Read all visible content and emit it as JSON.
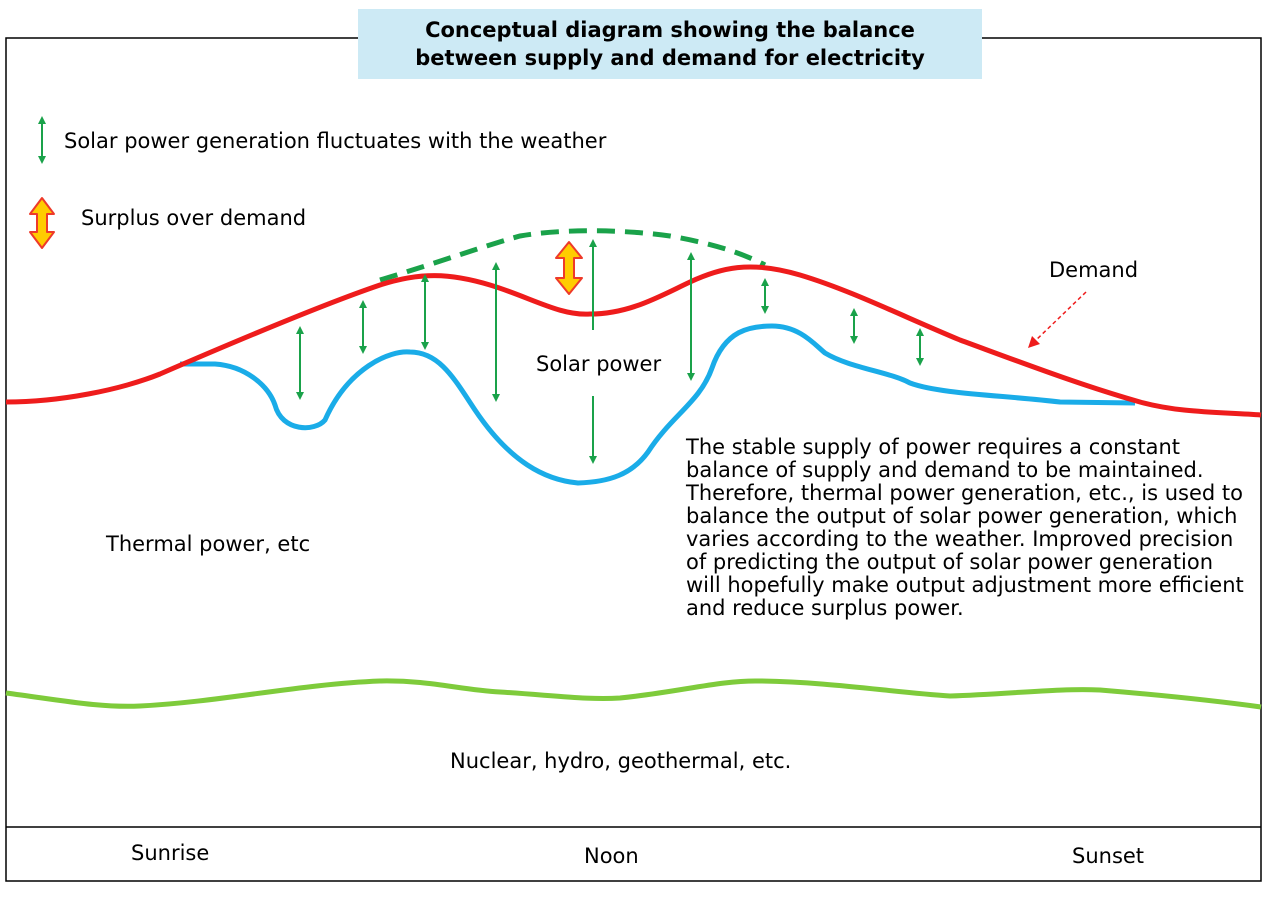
{
  "title": "Conceptual diagram showing the balance\nbetween supply and demand for electricity",
  "legend": {
    "fluctuation": "Solar power generation fluctuates with the weather",
    "surplus": "Surplus over demand"
  },
  "labels": {
    "demand": "Demand",
    "solar": "Solar power",
    "thermal": "Thermal power, etc",
    "baseload": "Nuclear, hydro, geothermal, etc."
  },
  "description": "The stable supply of power requires a constant balance of supply and demand to be maintained. Therefore, thermal power generation, etc., is used to balance the output of solar power generation, which varies according to the weather. Improved precision of predicting the output of solar power generation will hopefully make output adjustment more efficient and reduce surplus power.",
  "time_axis": {
    "sunrise": "Sunrise",
    "noon": "Noon",
    "sunset": "Sunset"
  },
  "colors": {
    "demand": "#ee1c1c",
    "solar": "#1aace8",
    "baseload": "#7ecb3b",
    "arrow": "#1aa24a",
    "surplus_fill": "#ffcc00",
    "surplus_stroke": "#ee3a2a",
    "title_bg": "#cdeaf5"
  }
}
